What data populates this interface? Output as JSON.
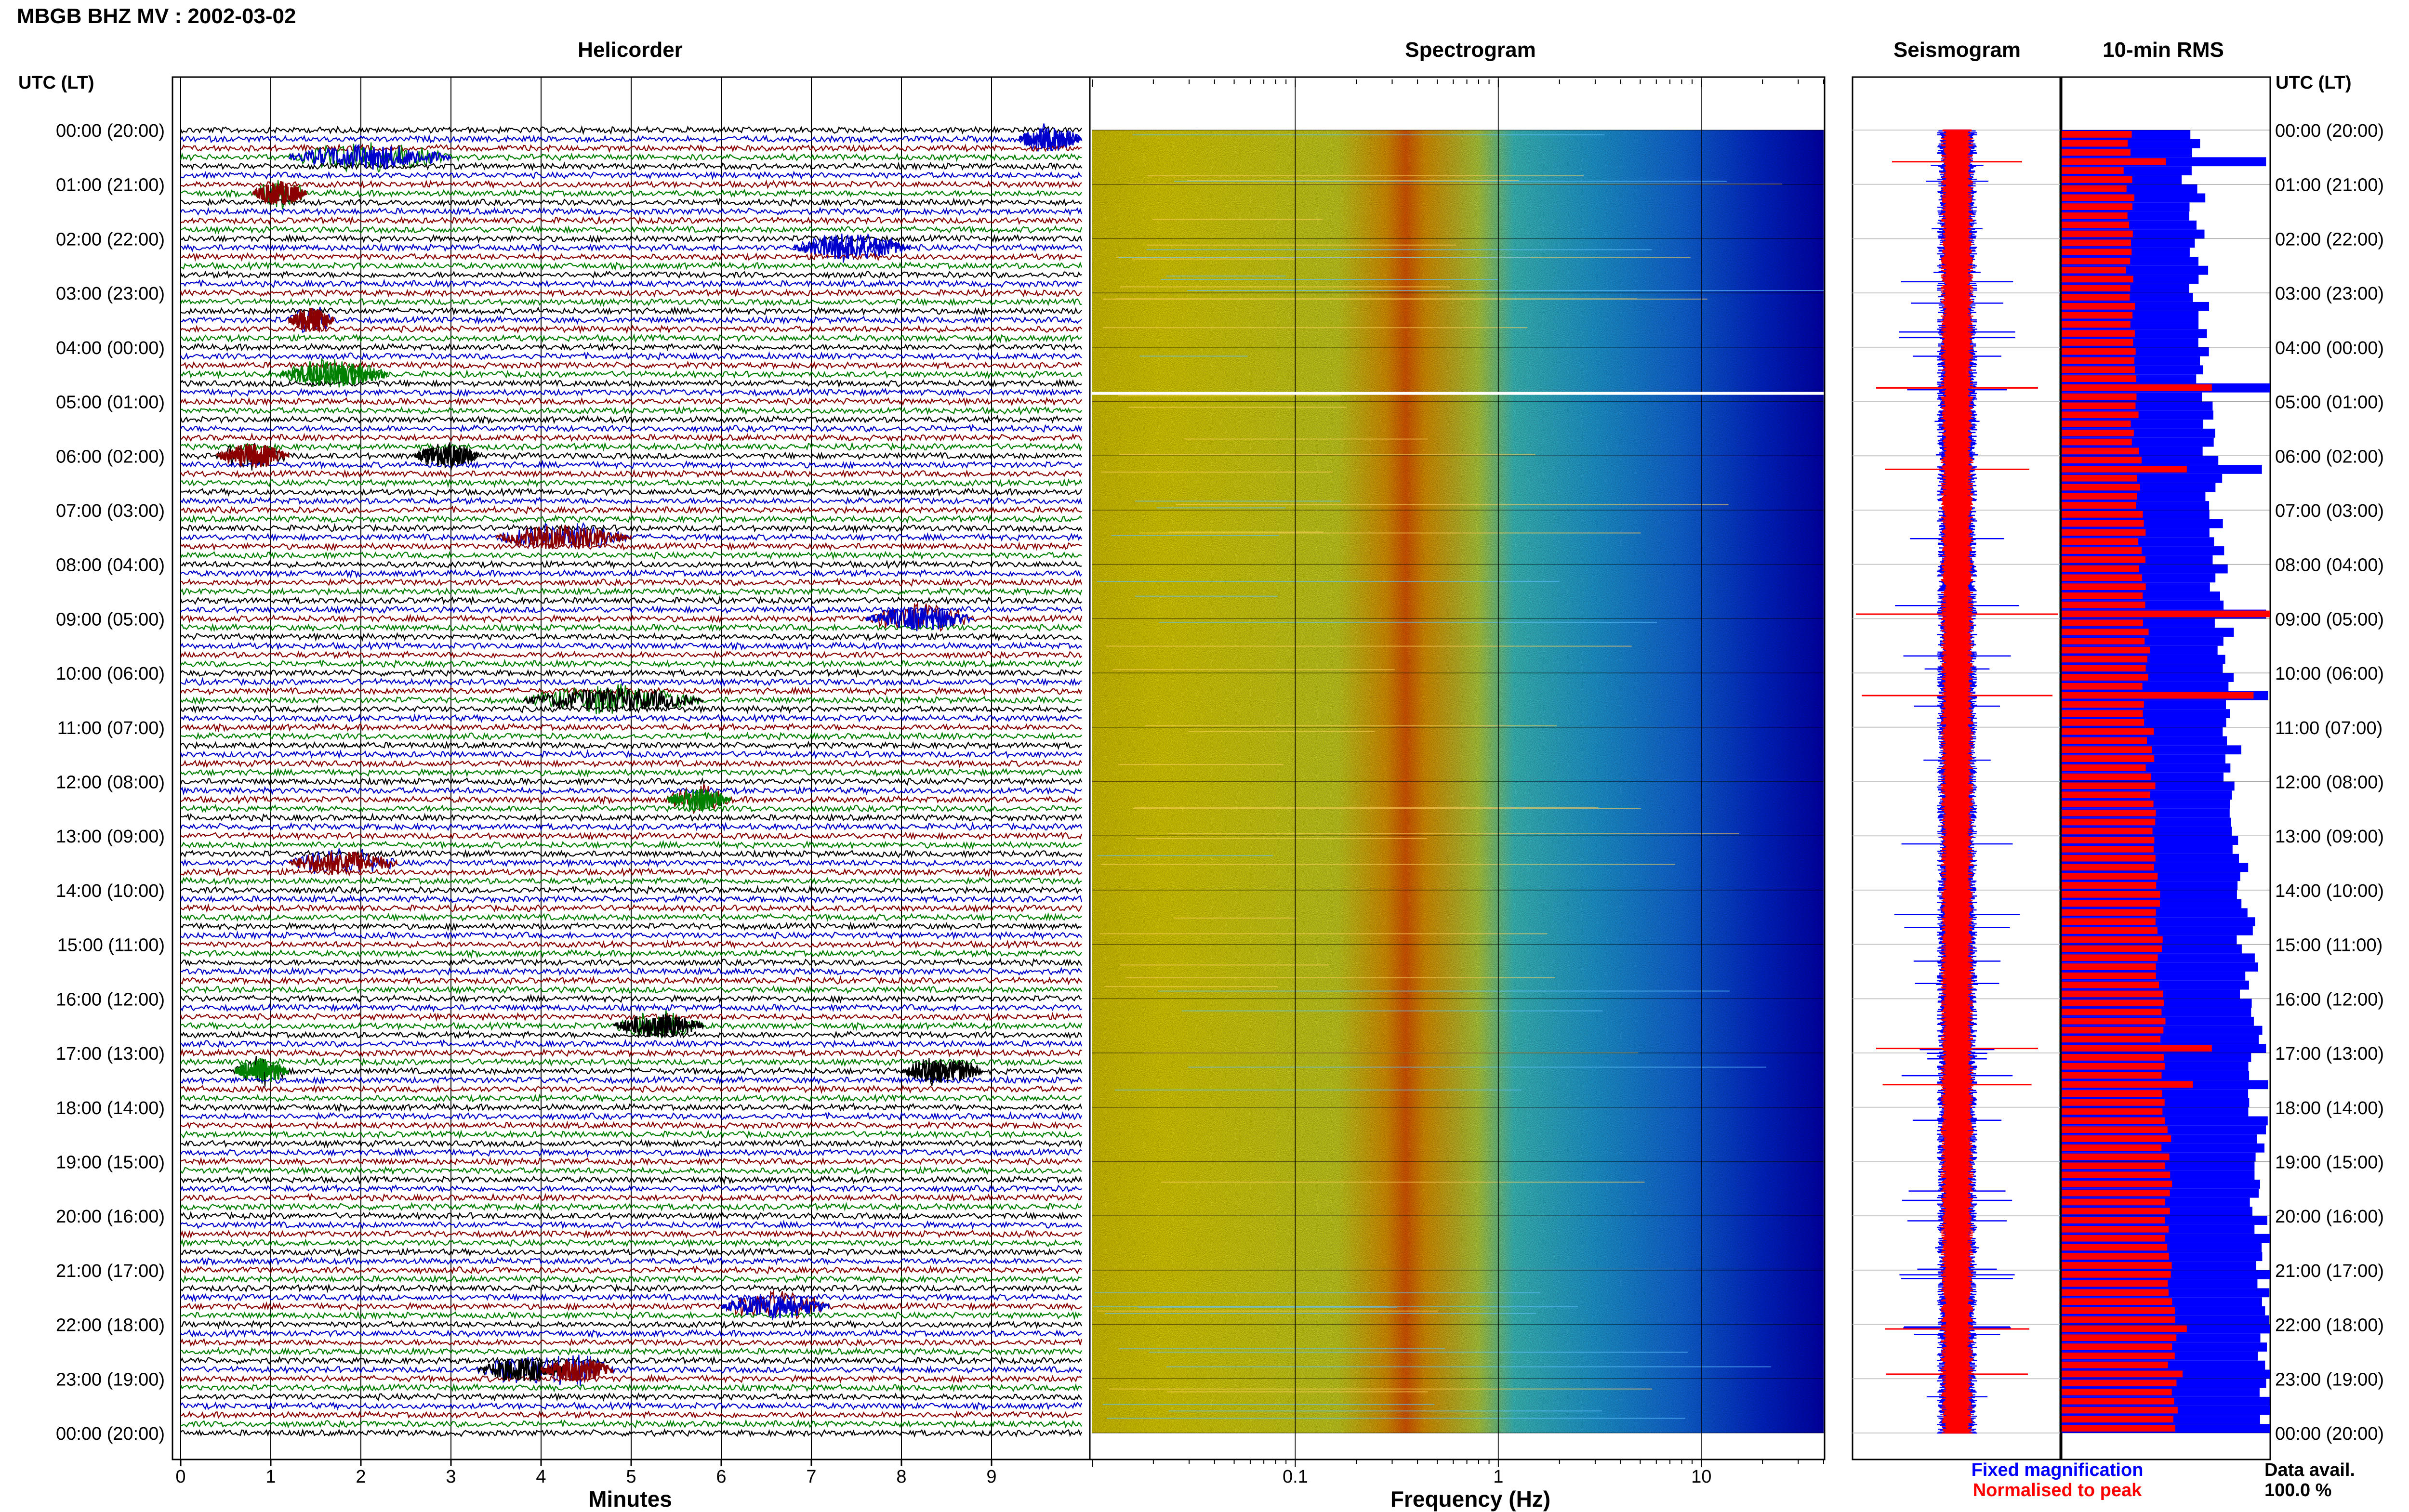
{
  "chart_data": {
    "type": "multi-panel",
    "figure_title": "MBGB BHZ MV : 2002-03-02",
    "utc_label": "UTC (LT)",
    "time_labels": [
      "00:00 (20:00)",
      "01:00 (21:00)",
      "02:00 (22:00)",
      "03:00 (23:00)",
      "04:00 (00:00)",
      "05:00 (01:00)",
      "06:00 (02:00)",
      "07:00 (03:00)",
      "08:00 (04:00)",
      "09:00 (05:00)",
      "10:00 (06:00)",
      "11:00 (07:00)",
      "12:00 (08:00)",
      "13:00 (09:00)",
      "14:00 (10:00)",
      "15:00 (11:00)",
      "16:00 (12:00)",
      "17:00 (13:00)",
      "18:00 (14:00)",
      "19:00 (15:00)",
      "20:00 (16:00)",
      "21:00 (17:00)",
      "22:00 (18:00)",
      "23:00 (19:00)",
      "00:00 (20:00)"
    ],
    "panels": {
      "helicorder": {
        "title": "Helicorder",
        "xlabel": "Minutes",
        "xticks": [
          0,
          1,
          2,
          3,
          4,
          5,
          6,
          7,
          8,
          9
        ],
        "xlim": [
          0,
          10
        ],
        "lines_per_hour": 6,
        "trace_colors": [
          "#000000",
          "#0000cc",
          "#8b0000",
          "#008000"
        ],
        "events": [
          {
            "hour": 0.2,
            "minute": 9.3,
            "duration": 0.7,
            "color": "#0000cc"
          },
          {
            "hour": 0.55,
            "minute": 1.2,
            "duration": 1.8,
            "color": "#0000cc"
          },
          {
            "hour": 1.1,
            "minute": 0.8,
            "duration": 0.6,
            "color": "#8b0000"
          },
          {
            "hour": 2.2,
            "minute": 6.8,
            "duration": 1.3,
            "color": "#0000cc"
          },
          {
            "hour": 3.5,
            "minute": 1.2,
            "duration": 0.5,
            "color": "#8b0000"
          },
          {
            "hour": 4.45,
            "minute": 1.1,
            "duration": 1.2,
            "color": "#008000"
          },
          {
            "hour": 6.05,
            "minute": 0.4,
            "duration": 0.8,
            "color": "#8b0000"
          },
          {
            "hour": 6.0,
            "minute": 2.6,
            "duration": 0.7,
            "color": "#000000"
          },
          {
            "hour": 7.45,
            "minute": 3.5,
            "duration": 1.5,
            "color": "#8b0000"
          },
          {
            "hour": 8.95,
            "minute": 7.6,
            "duration": 1.2,
            "color": "#0000cc"
          },
          {
            "hour": 10.55,
            "minute": 3.8,
            "duration": 2.0,
            "color": "#000000"
          },
          {
            "hour": 12.4,
            "minute": 5.4,
            "duration": 0.7,
            "color": "#008000"
          },
          {
            "hour": 13.5,
            "minute": 1.2,
            "duration": 1.2,
            "color": "#8b0000"
          },
          {
            "hour": 16.55,
            "minute": 4.8,
            "duration": 1.0,
            "color": "#000000"
          },
          {
            "hour": 17.3,
            "minute": 8.0,
            "duration": 0.9,
            "color": "#000000"
          },
          {
            "hour": 17.3,
            "minute": 0.6,
            "duration": 0.6,
            "color": "#008000"
          },
          {
            "hour": 21.6,
            "minute": 6.0,
            "duration": 1.2,
            "color": "#0000cc"
          },
          {
            "hour": 22.9,
            "minute": 3.3,
            "duration": 1.0,
            "color": "#000000"
          },
          {
            "hour": 22.85,
            "minute": 4.0,
            "duration": 0.8,
            "color": "#8b0000"
          }
        ]
      },
      "spectrogram": {
        "title": "Spectrogram",
        "xlabel": "Frequency (Hz)",
        "xscale": "log",
        "xticks": [
          "0.1",
          "1",
          "10"
        ],
        "xlim": [
          0.01,
          40
        ],
        "peak_frequency_hz": 0.35,
        "data_gap_utc_hour": 4.85
      },
      "seismogram": {
        "title": "Seismogram",
        "legend": [
          {
            "label": "Fixed magnification",
            "color": "#0000ff"
          },
          {
            "label": "Normalised to peak",
            "color": "#ff0000"
          }
        ]
      },
      "rms": {
        "title": "10-min RMS",
        "bins_per_hour": 6,
        "blue_base": [
          0.62,
          0.64,
          0.66,
          0.66,
          0.68,
          0.7,
          0.72,
          0.74,
          0.76,
          0.78,
          0.8,
          0.82,
          0.84,
          0.86,
          0.88,
          0.9,
          0.92,
          0.93,
          0.94,
          0.95,
          0.96,
          0.97,
          0.98,
          0.99
        ],
        "red_base": [
          0.32,
          0.33,
          0.33,
          0.34,
          0.35,
          0.35,
          0.37,
          0.38,
          0.39,
          0.4,
          0.41,
          0.42,
          0.44,
          0.45,
          0.46,
          0.47,
          0.48,
          0.49,
          0.5,
          0.51,
          0.52,
          0.53,
          0.53,
          0.54
        ],
        "spikes": [
          {
            "bin": 3,
            "blue": 0.98,
            "red": 0.5
          },
          {
            "bin": 28,
            "blue": 1.0,
            "red": 0.72
          },
          {
            "bin": 37,
            "blue": 0.96,
            "red": 0.6
          },
          {
            "bin": 53,
            "blue": 0.98,
            "red": 1.0
          },
          {
            "bin": 62,
            "blue": 0.99,
            "red": 0.92
          },
          {
            "bin": 101,
            "blue": 0.98,
            "red": 0.72
          },
          {
            "bin": 105,
            "blue": 0.99,
            "red": 0.63
          },
          {
            "bin": 132,
            "blue": 1.0,
            "red": 0.6
          },
          {
            "bin": 137,
            "blue": 1.0,
            "red": 0.58
          }
        ],
        "data_avail_label": "Data avail.",
        "data_avail_value": "100.0 %"
      }
    }
  }
}
